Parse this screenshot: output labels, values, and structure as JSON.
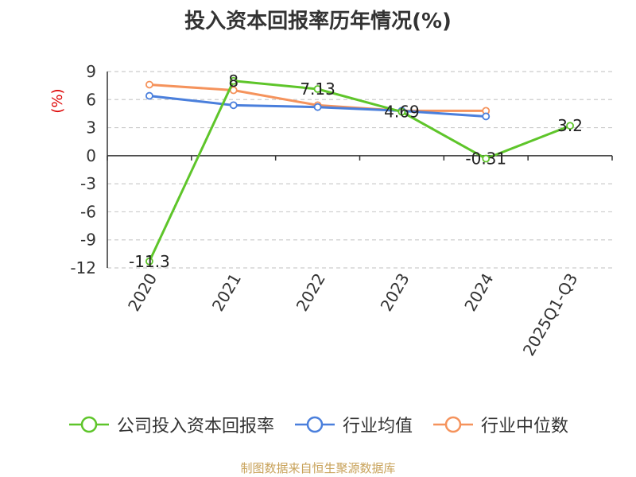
{
  "chart_data": {
    "type": "line",
    "title": "投入资本回报率历年情况(%)",
    "ylabel": "(%)",
    "xlabel": "",
    "categories": [
      "2020",
      "2021",
      "2022",
      "2023",
      "2024",
      "2025Q1-Q3"
    ],
    "ylim": [
      -12,
      9
    ],
    "yticks": [
      9,
      6,
      3,
      0,
      -3,
      -6,
      -9,
      -12
    ],
    "grid": true,
    "legend_position": "bottom",
    "series": [
      {
        "name": "公司投入资本回报率",
        "color": "#5ec52a",
        "values": [
          -11.3,
          8,
          7.13,
          4.69,
          -0.31,
          3.2
        ],
        "labels": [
          "-11.3",
          "8",
          "7.13",
          "4.69",
          "-0.31",
          "3.2"
        ]
      },
      {
        "name": "行业均值",
        "color": "#4a7fdc",
        "values": [
          6.4,
          5.4,
          5.2,
          4.8,
          4.2,
          null
        ]
      },
      {
        "name": "行业中位数",
        "color": "#f5935c",
        "values": [
          7.6,
          7.0,
          5.4,
          4.8,
          4.8,
          null
        ]
      }
    ]
  },
  "source_note": "制图数据来自恒生聚源数据库"
}
